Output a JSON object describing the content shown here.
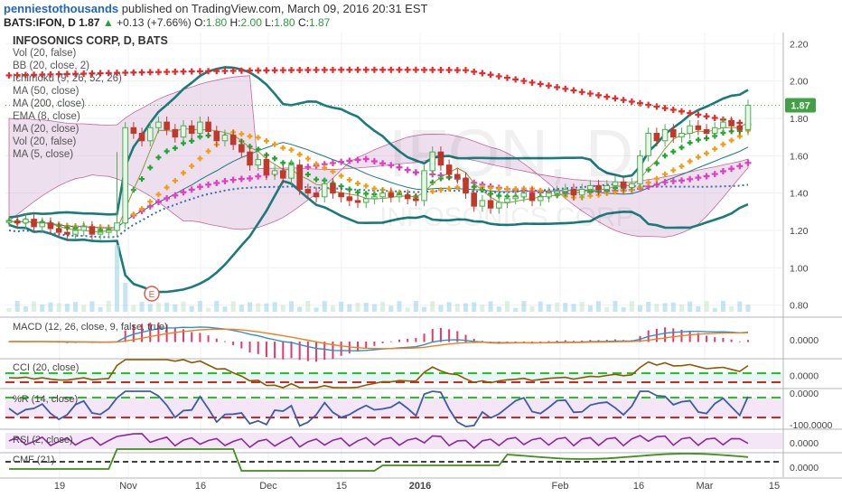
{
  "header": {
    "author": "penniestothousands",
    "published_text": "published on TradingView.com, March 09, 2016 20:31 EST",
    "symbol": "BATS:IFON, D",
    "last": "1.87",
    "change": "+0.13 (+7.66%)",
    "o_label": "O:",
    "o_value": "1.80",
    "h_label": "H:",
    "h_value": "2.00",
    "l_label": "L:",
    "l_value": "1.80",
    "c_label": "C:",
    "c_value": "1.87"
  },
  "watermark": "IFON, D",
  "watermark_sub": "INFOSONICS CORP",
  "legend": {
    "title": "INFOSONICS CORP, D, BATS",
    "items": [
      "Vol (20, false)",
      "BB (20, close, 2)",
      "Ichimoku (9, 26, 52, 26)",
      "MA (50, close)",
      "MA (200, close)",
      "EMA (8, close)",
      "MA (20, close)",
      "Vol (20, false)",
      "MA (5, close)"
    ]
  },
  "price_badge": "1.87",
  "earnings_marker": "E",
  "colors": {
    "up": "#4caf50",
    "down": "#c0392b",
    "ma200": "#e52b2b",
    "ema8": "#1aa830",
    "ma20": "#f39c12",
    "ma50": "#e040c0",
    "ma200b": "#3a6fb0",
    "bb": "#1b7a7a",
    "cloud": "#d9b8d9",
    "macd": "#2d8ed6",
    "signal": "#f0801a"
  },
  "chart_data": [
    {
      "type": "candlestick",
      "title": "INFOSONICS CORP, D, BATS",
      "x_tick_labels": [
        "19",
        "Nov",
        "16",
        "Dec",
        "15",
        "2016",
        "Feb",
        "16",
        "Mar",
        "15"
      ],
      "y_tick_labels": [
        "0.80",
        "1.00",
        "1.20",
        "1.40",
        "1.60",
        "1.80",
        "2.00",
        "2.20"
      ],
      "ylim": [
        0.76,
        2.24
      ],
      "last_close": 1.87,
      "approx_closes": [
        1.25,
        1.24,
        1.26,
        1.22,
        1.24,
        1.21,
        1.19,
        1.18,
        1.2,
        1.22,
        1.18,
        1.19,
        1.2,
        1.24,
        1.75,
        1.72,
        1.68,
        1.75,
        1.78,
        1.74,
        1.7,
        1.76,
        1.72,
        1.78,
        1.73,
        1.68,
        1.71,
        1.66,
        1.62,
        1.55,
        1.58,
        1.5,
        1.52,
        1.48,
        1.55,
        1.42,
        1.4,
        1.38,
        1.45,
        1.4,
        1.38,
        1.36,
        1.35,
        1.37,
        1.38,
        1.4,
        1.38,
        1.39,
        1.37,
        1.36,
        1.52,
        1.62,
        1.55,
        1.5,
        1.48,
        1.4,
        1.33,
        1.36,
        1.32,
        1.35,
        1.37,
        1.38,
        1.4,
        1.36,
        1.38,
        1.4,
        1.41,
        1.42,
        1.39,
        1.42,
        1.44,
        1.42,
        1.44,
        1.46,
        1.43,
        1.45,
        1.6,
        1.72,
        1.68,
        1.74,
        1.7,
        1.72,
        1.76,
        1.74,
        1.72,
        1.75,
        1.78,
        1.76,
        1.74,
        1.87
      ],
      "overlays": [
        "BB (20, close, 2)",
        "Ichimoku (9, 26, 52, 26)",
        "MA (50, close)",
        "MA (200, close)",
        "EMA (8, close)",
        "MA (20, close)",
        "MA (5, close)"
      ]
    },
    {
      "type": "line",
      "title": "MACD (12, 26, close, 9, false, true)",
      "y_tick_labels": [
        "0.0000"
      ],
      "series": [
        {
          "name": "MACD"
        },
        {
          "name": "Signal"
        }
      ]
    },
    {
      "type": "line",
      "title": "CCI (20, close)",
      "y_tick_labels": [
        "0.0000"
      ]
    },
    {
      "type": "line",
      "title": "%R (14, close)",
      "y_tick_labels": [
        "0.0000",
        "-100.0000"
      ]
    },
    {
      "type": "line",
      "title": "RSI (2, close)",
      "y_tick_labels": [
        "0.0000"
      ]
    },
    {
      "type": "line",
      "title": "CMF (21)",
      "y_tick_labels": [
        "0.0000"
      ]
    }
  ]
}
